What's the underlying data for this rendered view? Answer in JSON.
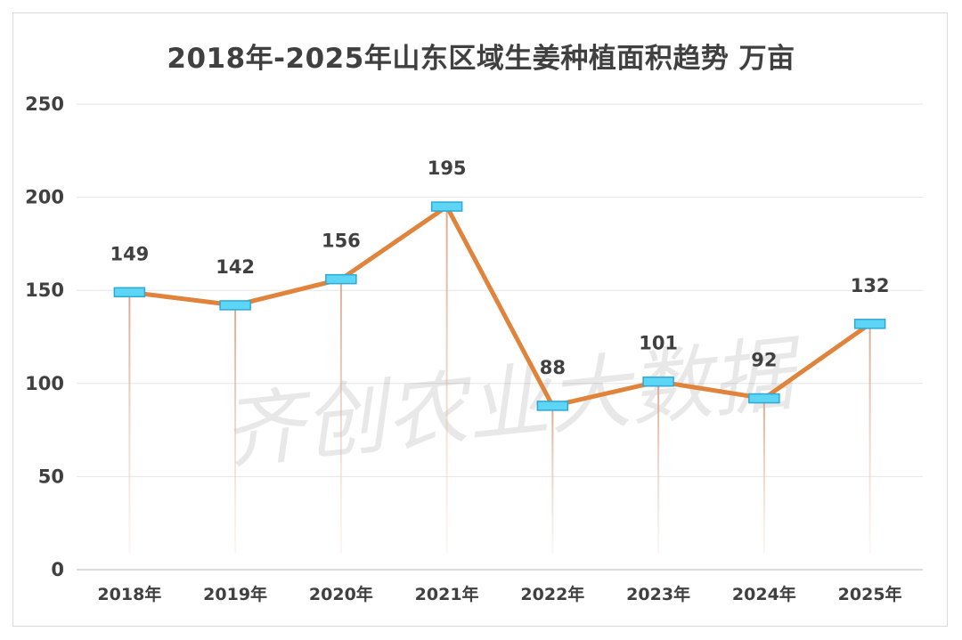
{
  "chart_data": {
    "type": "line",
    "title": "2018年-2025年山东区域生姜种植面积趋势  万亩",
    "categories": [
      "2018年",
      "2019年",
      "2020年",
      "2021年",
      "2022年",
      "2023年",
      "2024年",
      "2025年"
    ],
    "series": [
      {
        "values": [
          149,
          142,
          156,
          195,
          88,
          101,
          92,
          132
        ]
      }
    ],
    "data_labels": [
      "149",
      "142",
      "156",
      "195",
      "88",
      "101",
      "92",
      "132"
    ],
    "yticks": [
      "0",
      "50",
      "100",
      "150",
      "200",
      "250"
    ],
    "ylim": [
      0,
      250
    ],
    "grid": true,
    "legend": "none",
    "drop_lines": true,
    "line_color": "#e0843c",
    "marker_color": "#5dd5f5",
    "watermark": "齐创农业大数据"
  }
}
